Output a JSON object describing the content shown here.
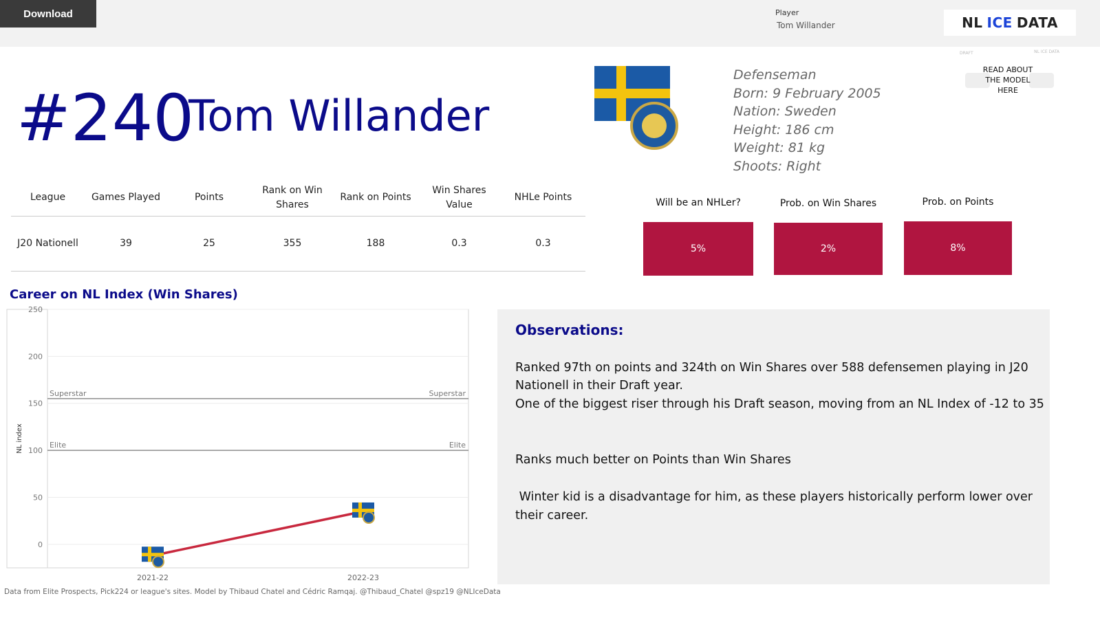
{
  "toolbar": {
    "download_label": "Download"
  },
  "filter": {
    "label": "Player",
    "value": "Tom Willander"
  },
  "brand": {
    "logo_part1": "NL",
    "logo_part2": "ICE",
    "logo_part3": "DATA",
    "accent": "#1c44d8"
  },
  "model_link": {
    "label_line1": "READ ABOUT",
    "label_line2": "THE MODEL",
    "label_line3": "HERE",
    "faint_left": "DRAFT",
    "faint_right": "NL ICE DATA"
  },
  "header": {
    "number": "#240",
    "name": "Tom Willander"
  },
  "bio": {
    "position": "Defenseman",
    "born": "Born: 9 February 2005",
    "nation": "Nation: Sweden",
    "height": "Height: 186 cm",
    "weight": "Weight: 81 kg",
    "shoots": "Shoots: Right"
  },
  "stats_table": {
    "headers": [
      "League",
      "Games Played",
      "Points",
      "Rank on Win Shares",
      "Rank on Points",
      "Win Shares Value",
      "NHLe Points"
    ],
    "rows": [
      [
        "J20 Nationell",
        "39",
        "25",
        "355",
        "188",
        "0.3",
        "0.3"
      ]
    ]
  },
  "probabilities": {
    "nhler_label": "Will be an NHLer?",
    "nhler_value": "5%",
    "ws_label": "Prob. on Win Shares",
    "ws_value": "2%",
    "pts_label": "Prob. on Points",
    "pts_value": "8%",
    "box_color": "#b01540"
  },
  "chart_title": "Career on NL Index (Win Shares)",
  "chart_data": {
    "type": "line",
    "ylabel": "NL index",
    "xlabel": "",
    "x": [
      "2021-22",
      "2022-23"
    ],
    "series": [
      {
        "values": [
          -12,
          35
        ]
      }
    ],
    "ylim": [
      -25,
      250
    ],
    "yticks": [
      0,
      50,
      100,
      150,
      200,
      250
    ],
    "reference_lines": [
      {
        "label": "Superstar",
        "value": 155
      },
      {
        "label": "Elite",
        "value": 100
      }
    ],
    "line_color": "#c8283e",
    "marker": "sweden-flag-icon",
    "grid": true
  },
  "observations": {
    "title": "Observations:",
    "line1": "Ranked 97th on points and 324th on Win Shares over 588 defensemen playing in J20",
    "line2": "Nationell in their Draft year.",
    "line3": "One of the biggest riser through his Draft season, moving from an NL Index of -12 to 35",
    "line4": "Ranks much better on Points than Win Shares",
    "line5": " Winter kid is a disadvantage for him, as these players historically perform lower over",
    "line6": "their career."
  },
  "footer": "Data from Elite Prospects, Pick224 or league's sites. Model by Thibaud Chatel and Cédric Ramqaj. @Thibaud_Chatel @spz19 @NLIceData"
}
